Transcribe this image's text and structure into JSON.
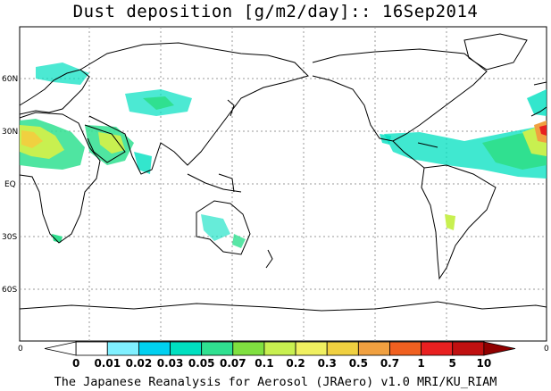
{
  "map": {
    "title": "Dust deposition [g/m2/day]:: 16Sep2014",
    "footer": "The Japanese Reanalysis for Aerosol (JRAero) v1.0 MRI/KU_RIAM",
    "lat_labels": [
      "60N",
      "30N",
      "EQ",
      "30S",
      "60S"
    ],
    "edge_labels": [
      "0",
      "0"
    ],
    "colorbar": {
      "labels": [
        "0",
        "0.01",
        "0.02",
        "0.03",
        "0.05",
        "0.07",
        "0.1",
        "0.2",
        "0.3",
        "0.5",
        "0.7",
        "1",
        "5",
        "10"
      ],
      "colors": [
        "#ffffff",
        "#ffffff",
        "#80f0ff",
        "#00d0f0",
        "#00e0c0",
        "#30e090",
        "#80e040",
        "#c8f050",
        "#f0f060",
        "#f0d040",
        "#f0a040",
        "#f06020",
        "#e82020",
        "#c01010",
        "#900000"
      ]
    },
    "land_color": "#000000",
    "grid_color": "#999999"
  }
}
